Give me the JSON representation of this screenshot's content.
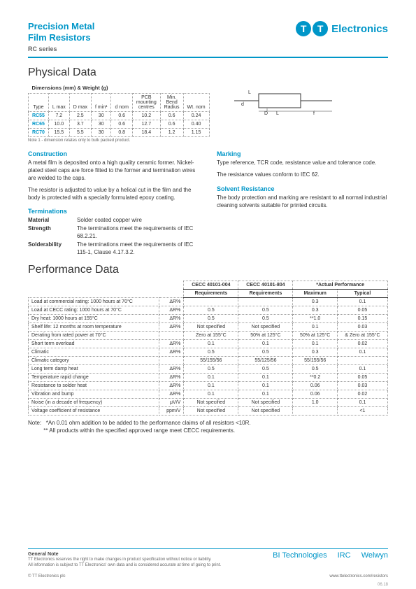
{
  "header": {
    "title_line1": "Precision Metal",
    "title_line2": "Film Resistors",
    "series": "RC series",
    "logo_text": "Electronics",
    "logo_tt": "TT"
  },
  "physical": {
    "heading": "Physical Data",
    "table_title": "Dimensions (mm) & Weight (g)",
    "headers": [
      "Type",
      "L max",
      "D max",
      "f min¹",
      "d nom",
      "PCB\nmounting\ncentres",
      "Min.\nBend\nRadius",
      "Wt. nom"
    ],
    "rows": [
      {
        "type": "RC55",
        "vals": [
          "7.2",
          "2.5",
          "30",
          "0.6",
          "10.2",
          "0.6",
          "0.24"
        ]
      },
      {
        "type": "RC65",
        "vals": [
          "10.0",
          "3.7",
          "30",
          "0.6",
          "12.7",
          "0.6",
          "0.40"
        ]
      },
      {
        "type": "RC70",
        "vals": [
          "15.5",
          "5.5",
          "30",
          "0.8",
          "18.4",
          "1.2",
          "1.15"
        ]
      }
    ],
    "note1": "Note 1 - dimension relates only to bulk packed product."
  },
  "construction": {
    "heading": "Construction",
    "p1": "A metal film is deposited onto a high quality ceramic former. Nickel-plated steel caps are force fitted to the former and termination wires are welded to the caps.",
    "p2": "The resistor is adjusted to value by a helical cut in the film and the body is protected with a specially formulated epoxy coating."
  },
  "terminations": {
    "heading": "Terminations",
    "rows": [
      {
        "label": "Material",
        "text": "Solder coated copper wire"
      },
      {
        "label": "Strength",
        "text": "The terminations meet the requirements of IEC 68.2.21."
      },
      {
        "label": "Solderability",
        "text": "The terminations meet the requirements of IEC 115-1, Clause 4.17.3.2."
      }
    ]
  },
  "marking": {
    "heading": "Marking",
    "p1": "Type reference, TCR code, resistance value and tolerance code.",
    "p2": "The resistance values conform to IEC 62."
  },
  "solvent": {
    "heading": "Solvent Resistance",
    "p1": "The body protection and marking are resistant to all normal industrial cleaning solvents suitable for printed circuits."
  },
  "performance": {
    "heading": "Performance Data",
    "h1": "CECC 40101-004",
    "h2": "CECC 40101-804",
    "h3": "*Actual Performance",
    "sub1": "Requirements",
    "sub2": "Requirements",
    "sub3": "Maximum",
    "sub4": "Typical",
    "rows": [
      {
        "label": "Load at commercial rating: 1000 hours at 70°C",
        "unit": "ΔR%",
        "v": [
          "",
          "",
          "0.3",
          "0.1"
        ]
      },
      {
        "label": "Load at CECC rating: 1000 hours at 70°C",
        "unit": "ΔR%",
        "v": [
          "0.5",
          "0.5",
          "0.3",
          "0.05"
        ]
      },
      {
        "label": "Dry heat: 1000 hours at 155°C",
        "unit": "ΔR%",
        "v": [
          "0.5",
          "0.5",
          "**1.0",
          "0.15"
        ]
      },
      {
        "label": "Shelf life: 12 months at room temperature",
        "unit": "ΔR%",
        "v": [
          "Not specified",
          "Not specified",
          "0.1",
          "0.03"
        ]
      },
      {
        "label": "Derating from rated power at 70°C",
        "unit": "",
        "v": [
          "Zero at 155°C",
          "50% at 125°C",
          "50% at 125°C",
          "& Zero at 155°C"
        ]
      },
      {
        "label": "Short term overload",
        "unit": "ΔR%",
        "v": [
          "0.1",
          "0.1",
          "0.1",
          "0.02"
        ]
      },
      {
        "label": "Climatic",
        "unit": "ΔR%",
        "v": [
          "0.5",
          "0.5",
          "0.3",
          "0.1"
        ]
      },
      {
        "label": "Climatic category",
        "unit": "",
        "v": [
          "55/155/56",
          "55/125/56",
          "55/155/56",
          ""
        ]
      },
      {
        "label": "Long term damp heat",
        "unit": "ΔR%",
        "v": [
          "0.5",
          "0.5",
          "0.5",
          "0.1"
        ]
      },
      {
        "label": "Temperature rapid change",
        "unit": "ΔR%",
        "v": [
          "0.1",
          "0.1",
          "**0.2",
          "0.05"
        ]
      },
      {
        "label": "Resistance to solder heat",
        "unit": "ΔR%",
        "v": [
          "0.1",
          "0.1",
          "0.06",
          "0.03"
        ]
      },
      {
        "label": "Vibration and bump",
        "unit": "ΔR%",
        "v": [
          "0.1",
          "0.1",
          "0.06",
          "0.02"
        ]
      },
      {
        "label": "Noise (in a decade of frequency)",
        "unit": "μV/V",
        "v": [
          "Not specified",
          "Not specified",
          "1.0",
          "0.1"
        ]
      },
      {
        "label": "Voltage coefficient of resistance",
        "unit": "ppm/V",
        "v": [
          "Not specified",
          "Not specified",
          "",
          "<1"
        ]
      }
    ],
    "note_label": "Note:",
    "note1": "*An 0.01 ohm addition to be added to the performance claims of all resistors <10R.",
    "note2": "** All products within the specified approved range meet CECC requirements."
  },
  "footer": {
    "gn_title": "General Note",
    "gn1": "TT Electronics reserves the right to make changes in product specification without notice or liability.",
    "gn2": "All information is subject to TT Electronics' own data and is considered accurate at time of going to print.",
    "brands": [
      "BI Technologies",
      "IRC",
      "Welwyn"
    ],
    "url": "www.ttelectronics.com/resistors",
    "copyright": "© TT Electronics plc",
    "page": "06.18"
  }
}
